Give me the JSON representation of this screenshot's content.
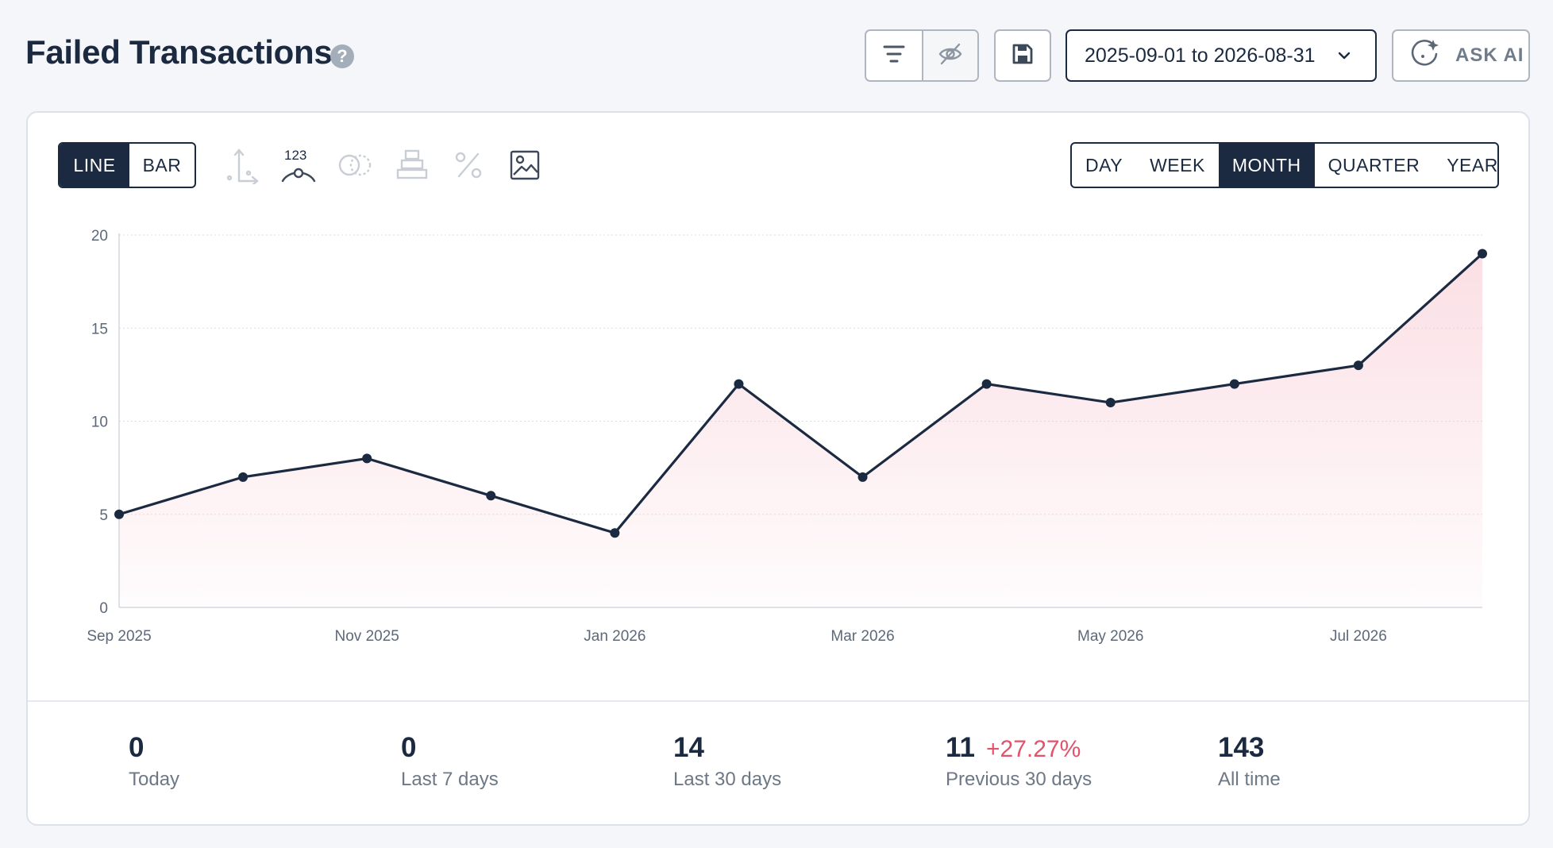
{
  "header": {
    "title": "Failed Transactions",
    "help": "?",
    "date_range": "2025-09-01 to 2026-08-31",
    "ask_ai_label": "ASK AI"
  },
  "chart_type_toggle": [
    {
      "label": "LINE",
      "active": true
    },
    {
      "label": "BAR",
      "active": false
    }
  ],
  "toolbar": {
    "data_labels_tool_text": "123"
  },
  "period_toggle": [
    {
      "label": "DAY",
      "active": false
    },
    {
      "label": "WEEK",
      "active": false
    },
    {
      "label": "MONTH",
      "active": true
    },
    {
      "label": "QUARTER",
      "active": false
    },
    {
      "label": "YEAR",
      "active": false
    }
  ],
  "chart_data": {
    "type": "area",
    "x": [
      "2025-09",
      "2025-10",
      "2025-11",
      "2025-12",
      "2026-01",
      "2026-02",
      "2026-03",
      "2026-04",
      "2026-05",
      "2026-06",
      "2026-07",
      "2026-08"
    ],
    "values": [
      5,
      7,
      8,
      6,
      4,
      12,
      7,
      12,
      11,
      12,
      13,
      19
    ],
    "xtick_labels": [
      "Sep 2025",
      "Nov 2025",
      "Jan 2026",
      "Mar 2026",
      "May 2026",
      "Jul 2026"
    ],
    "xtick_months": [
      "2025-09",
      "2025-11",
      "2026-01",
      "2026-03",
      "2026-05",
      "2026-07"
    ],
    "yticks": [
      0,
      5,
      10,
      15,
      20
    ],
    "ylim": [
      0,
      20
    ],
    "grid": true,
    "line_color": "#1b2a41",
    "fill_color": "#f7c5cf"
  },
  "stats": [
    {
      "value": "0",
      "label": "Today",
      "change": ""
    },
    {
      "value": "0",
      "label": "Last 7 days",
      "change": ""
    },
    {
      "value": "14",
      "label": "Last 30 days",
      "change": ""
    },
    {
      "value": "11",
      "label": "Previous 30 days",
      "change": "+27.27%"
    },
    {
      "value": "143",
      "label": "All time",
      "change": ""
    }
  ]
}
